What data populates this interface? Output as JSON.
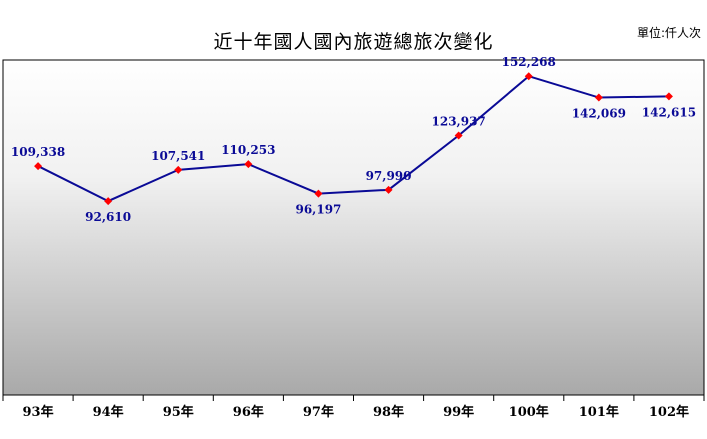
{
  "header": {
    "title": "近十年國人國內旅遊總旅次變化",
    "unit": "單位:仟人次"
  },
  "chart_data": {
    "type": "line",
    "title": "近十年國人國內旅遊總旅次變化",
    "unit": "單位:仟人次",
    "categories": [
      "93年",
      "94年",
      "95年",
      "96年",
      "97年",
      "98年",
      "99年",
      "100年",
      "101年",
      "102年"
    ],
    "series": [
      {
        "values": [
          109338,
          92610,
          107541,
          110253,
          96197,
          97990,
          123937,
          152268,
          142069,
          142615
        ],
        "labels": [
          "109,338",
          "92,610",
          "107,541",
          "110,253",
          "96,197",
          "97,990",
          "123,937",
          "152,268",
          "142,069",
          "142,615"
        ],
        "line_color": "#0a0a96",
        "marker_color": "#ff0000"
      }
    ],
    "ylim": [
      0,
      160000
    ],
    "grid": false,
    "background": "gradient-white-to-gray"
  }
}
